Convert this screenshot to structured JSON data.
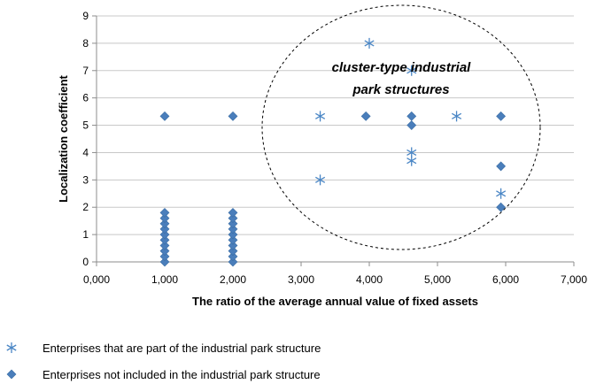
{
  "chart_data": {
    "type": "scatter",
    "xlabel": "The ratio of the average annual value of fixed assets",
    "ylabel": "Localization coefficient",
    "xlim": [
      0,
      7
    ],
    "ylim": [
      0,
      9
    ],
    "x_ticks": [
      "0,000",
      "1,000",
      "2,000",
      "3,000",
      "4,000",
      "5,000",
      "6,000",
      "7,000"
    ],
    "y_ticks": [
      "0",
      "1",
      "2",
      "3",
      "4",
      "5",
      "6",
      "7",
      "8",
      "9"
    ],
    "grid": "horizontal",
    "legend_position": "bottom-left",
    "annotation": [
      "cluster-type industrial",
      "park structures"
    ],
    "series": [
      {
        "name": "Enterprises that are part of the industrial park structure",
        "marker": "asterisk",
        "color": "#4a86c5",
        "points": [
          [
            3.28,
            5.33
          ],
          [
            4.0,
            8.0
          ],
          [
            4.62,
            7.0
          ],
          [
            5.28,
            5.33
          ],
          [
            3.28,
            3.0
          ],
          [
            4.62,
            4.0
          ],
          [
            4.62,
            3.7
          ],
          [
            5.93,
            2.5
          ]
        ]
      },
      {
        "name": "Enterprises not included in the industrial park structure",
        "marker": "diamond",
        "color": "#4a7ebb",
        "points": [
          [
            1.0,
            5.33
          ],
          [
            2.0,
            5.33
          ],
          [
            3.95,
            5.33
          ],
          [
            4.62,
            5.33
          ],
          [
            5.93,
            5.33
          ],
          [
            4.62,
            5.0
          ],
          [
            5.93,
            3.5
          ],
          [
            5.93,
            2.0
          ],
          [
            1.0,
            0.0
          ],
          [
            1.0,
            0.2
          ],
          [
            1.0,
            0.4
          ],
          [
            1.0,
            0.6
          ],
          [
            1.0,
            0.8
          ],
          [
            1.0,
            1.0
          ],
          [
            1.0,
            1.2
          ],
          [
            1.0,
            1.4
          ],
          [
            1.0,
            1.6
          ],
          [
            1.0,
            1.8
          ],
          [
            2.0,
            0.0
          ],
          [
            2.0,
            0.2
          ],
          [
            2.0,
            0.4
          ],
          [
            2.0,
            0.6
          ],
          [
            2.0,
            0.8
          ],
          [
            2.0,
            1.0
          ],
          [
            2.0,
            1.2
          ],
          [
            2.0,
            1.4
          ],
          [
            2.0,
            1.6
          ],
          [
            2.0,
            1.8
          ]
        ]
      }
    ]
  }
}
